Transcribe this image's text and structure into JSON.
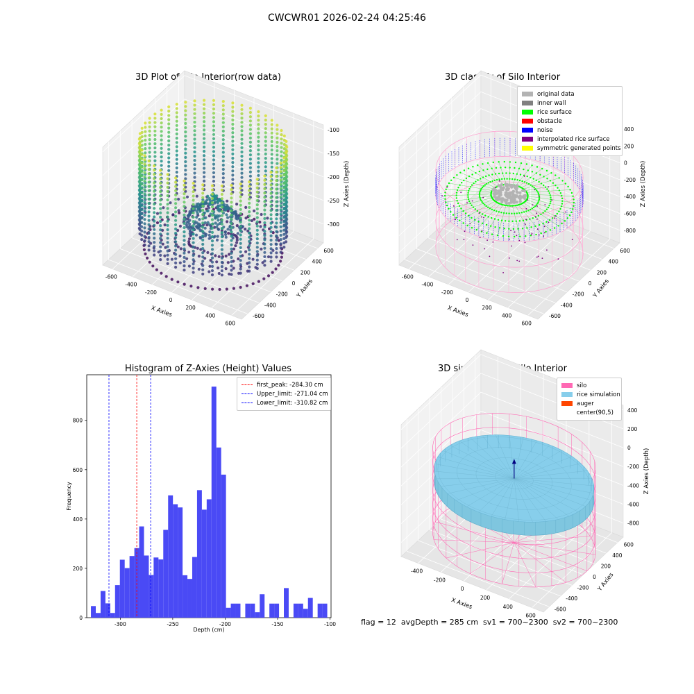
{
  "suptitle": "CWCWR01 2026-02-24 04:25:46",
  "footer_text": "flag = 12  avgDepth = 285 cm  sv1 = 700~2300  sv2 = 700~2300",
  "chart_data": [
    {
      "type": "scatter3d",
      "title": "3D Plot of Silo Interior(row data)",
      "xlabel": "X Axies",
      "ylabel": "Y Axies",
      "zlabel": "Z Axies (Depth)",
      "x_ticks": [
        -600,
        -400,
        -200,
        0,
        200,
        400,
        600
      ],
      "y_ticks": [
        -600,
        -400,
        -200,
        0,
        200,
        400,
        600
      ],
      "z_ticks": [
        -100,
        -150,
        -200,
        -250,
        -300
      ],
      "colormap": "viridis"
    },
    {
      "type": "scatter3d",
      "title": "3D classify of Silo Interior",
      "x_ticks": [
        -600,
        -400,
        -200,
        0,
        200,
        400,
        600
      ],
      "y_ticks": [
        -600,
        -400,
        -200,
        0,
        200,
        400,
        600
      ],
      "z_ticks": [
        400,
        200,
        0,
        -200,
        -400,
        -600,
        -800
      ],
      "xlabel": "X Axies",
      "ylabel": "Y Axies",
      "zlabel": "Z Axies (Depth)",
      "legend_position": "top-right",
      "legend": [
        {
          "label": "original data",
          "color": "#b3b3b3"
        },
        {
          "label": "inner wall",
          "color": "#808080"
        },
        {
          "label": "rice surface",
          "color": "#00ff00"
        },
        {
          "label": "obstacle",
          "color": "#ff0000"
        },
        {
          "label": "noise",
          "color": "#0000ff"
        },
        {
          "label": "interpolated rice surface",
          "color": "#800080"
        },
        {
          "label": "symmetric generated points",
          "color": "#ffff00"
        }
      ]
    },
    {
      "type": "bar",
      "title": "Histogram of Z-Axies (Height) Values",
      "xlabel": "Depth (cm)",
      "ylabel": "Frequency",
      "xlim": [
        -332,
        -99
      ],
      "ylim": [
        0,
        985
      ],
      "x_ticks": [
        -300,
        -250,
        -200,
        -150,
        -100
      ],
      "y_ticks": [
        0,
        200,
        400,
        600,
        800
      ],
      "bar_color": "#4a4af5",
      "bin_width": 4.6,
      "bins": [
        [
          -328.0,
          47
        ],
        [
          -323.4,
          19
        ],
        [
          -318.8,
          108
        ],
        [
          -314.2,
          58
        ],
        [
          -309.6,
          19
        ],
        [
          -305.0,
          132
        ],
        [
          -300.4,
          235
        ],
        [
          -295.8,
          201
        ],
        [
          -291.2,
          250
        ],
        [
          -286.6,
          282
        ],
        [
          -282.0,
          370
        ],
        [
          -277.4,
          252
        ],
        [
          -272.8,
          173
        ],
        [
          -268.2,
          244
        ],
        [
          -263.6,
          236
        ],
        [
          -259.0,
          356
        ],
        [
          -254.4,
          496
        ],
        [
          -249.8,
          460
        ],
        [
          -245.2,
          447
        ],
        [
          -240.6,
          172
        ],
        [
          -236.0,
          157
        ],
        [
          -231.4,
          246
        ],
        [
          -226.8,
          517
        ],
        [
          -222.2,
          438
        ],
        [
          -217.6,
          480
        ],
        [
          -213.0,
          937
        ],
        [
          -208.4,
          690
        ],
        [
          -203.8,
          580
        ],
        [
          -199.2,
          40
        ],
        [
          -194.6,
          57
        ],
        [
          -190.0,
          57
        ],
        [
          -185.4,
          0
        ],
        [
          -180.8,
          57
        ],
        [
          -176.2,
          57
        ],
        [
          -171.6,
          22
        ],
        [
          -167.0,
          95
        ],
        [
          -162.4,
          0
        ],
        [
          -157.8,
          57
        ],
        [
          -153.2,
          57
        ],
        [
          -148.6,
          0
        ],
        [
          -144.0,
          120
        ],
        [
          -139.4,
          0
        ],
        [
          -134.8,
          57
        ],
        [
          -130.2,
          57
        ],
        [
          -125.6,
          36
        ],
        [
          -121.0,
          80
        ],
        [
          -116.4,
          0
        ],
        [
          -111.8,
          57
        ],
        [
          -107.2,
          57
        ]
      ],
      "vlines": [
        {
          "label": "first_peak: -284.30 cm",
          "x": -284.3,
          "color": "#ff0000"
        },
        {
          "label": "Upper_limit: -271.04 cm",
          "x": -271.04,
          "color": "#0000ff"
        },
        {
          "label": "Lower_limit: -310.82 cm",
          "x": -310.82,
          "color": "#0000ff"
        }
      ],
      "legend_position": "top-right"
    },
    {
      "type": "surface3d",
      "title": "3D simulation of Silo Interior",
      "xlabel": "X Axies",
      "ylabel": "Y Axies",
      "zlabel": "Z Axies (Depth)",
      "x_ticks": [
        -400,
        -200,
        0,
        200,
        400,
        600
      ],
      "y_ticks": [
        -600,
        -400,
        -200,
        0,
        200,
        400,
        600
      ],
      "z_ticks": [
        400,
        200,
        0,
        -200,
        -400,
        -600,
        -800
      ],
      "legend_position": "top-right",
      "legend": [
        {
          "label": "silo",
          "color": "#ff69b4"
        },
        {
          "label": "rice simulation",
          "color": "#87ceeb"
        },
        {
          "label": "auger",
          "color": "#ff4500"
        },
        {
          "label": "center(90,5)",
          "color": "#ffffff"
        }
      ]
    }
  ]
}
